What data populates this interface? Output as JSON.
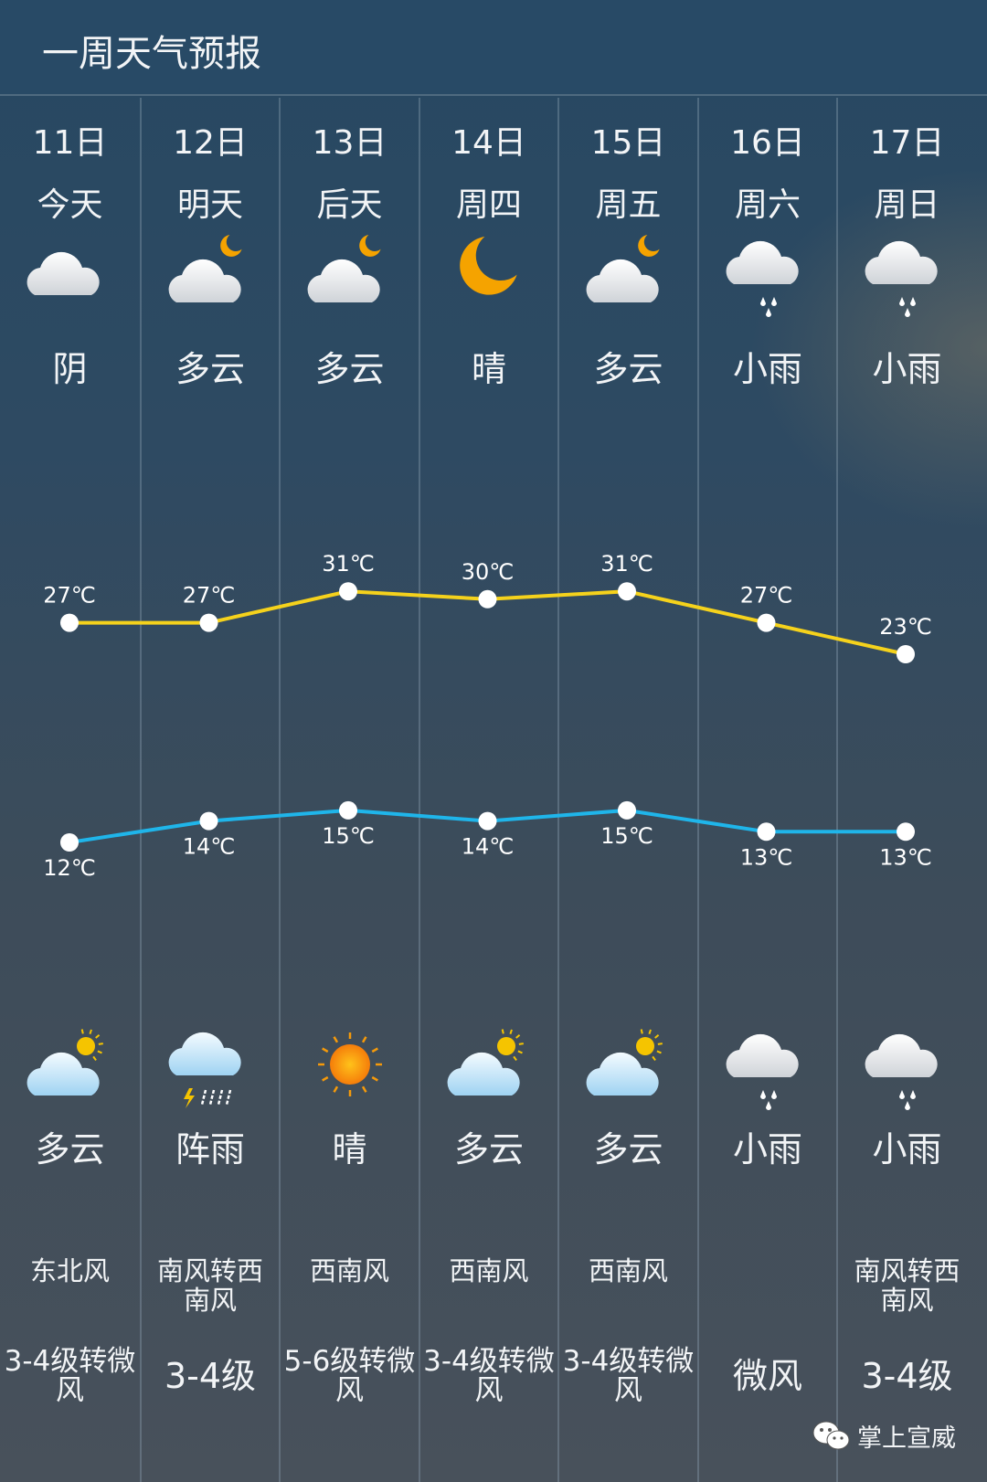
{
  "header": {
    "title": "一周天气预报"
  },
  "days": [
    {
      "date": "11日",
      "weekday": "今天",
      "day_icon": "cloudy-icon",
      "day_desc": "阴",
      "night_icon": "partly-cloudy-day-icon",
      "night_desc": "多云",
      "high": "27℃",
      "low": "12℃",
      "wind_dir": "东北风",
      "wind_level": "3-4级转微风"
    },
    {
      "date": "12日",
      "weekday": "明天",
      "day_icon": "partly-cloudy-night-icon",
      "day_desc": "多云",
      "night_icon": "thundershower-icon",
      "night_desc": "阵雨",
      "high": "27℃",
      "low": "14℃",
      "wind_dir": "南风转西南风",
      "wind_level": "3-4级"
    },
    {
      "date": "13日",
      "weekday": "后天",
      "day_icon": "partly-cloudy-night-icon",
      "day_desc": "多云",
      "night_icon": "sun-icon",
      "night_desc": "晴",
      "high": "31℃",
      "low": "15℃",
      "wind_dir": "西南风",
      "wind_level": "5-6级转微风"
    },
    {
      "date": "14日",
      "weekday": "周四",
      "day_icon": "moon-icon",
      "day_desc": "晴",
      "night_icon": "partly-cloudy-day-icon",
      "night_desc": "多云",
      "high": "30℃",
      "low": "14℃",
      "wind_dir": "西南风",
      "wind_level": "3-4级转微风"
    },
    {
      "date": "15日",
      "weekday": "周五",
      "day_icon": "partly-cloudy-night-icon",
      "day_desc": "多云",
      "night_icon": "partly-cloudy-day-icon",
      "night_desc": "多云",
      "high": "31℃",
      "low": "15℃",
      "wind_dir": "西南风",
      "wind_level": "3-4级转微风"
    },
    {
      "date": "16日",
      "weekday": "周六",
      "day_icon": "light-rain-icon",
      "day_desc": "小雨",
      "night_icon": "light-rain-icon",
      "night_desc": "小雨",
      "high": "27℃",
      "low": "13℃",
      "wind_dir": "",
      "wind_level": "微风"
    },
    {
      "date": "17日",
      "weekday": "周日",
      "day_icon": "light-rain-icon",
      "day_desc": "小雨",
      "night_icon": "light-rain-icon",
      "night_desc": "小雨",
      "high": "23℃",
      "low": "13℃",
      "wind_dir": "南风转西南风",
      "wind_level": "3-4级"
    }
  ],
  "temps": {
    "high": [
      27,
      27,
      31,
      30,
      31,
      27,
      23
    ],
    "low": [
      12,
      14,
      15,
      14,
      15,
      13,
      13
    ]
  },
  "colors": {
    "high_line": "#f5d21c",
    "low_line": "#1fb5ea",
    "moon": "#f5a300",
    "sun": "#f59a0a"
  },
  "brand": {
    "name": "掌上宣威",
    "icon": "wechat-icon"
  }
}
